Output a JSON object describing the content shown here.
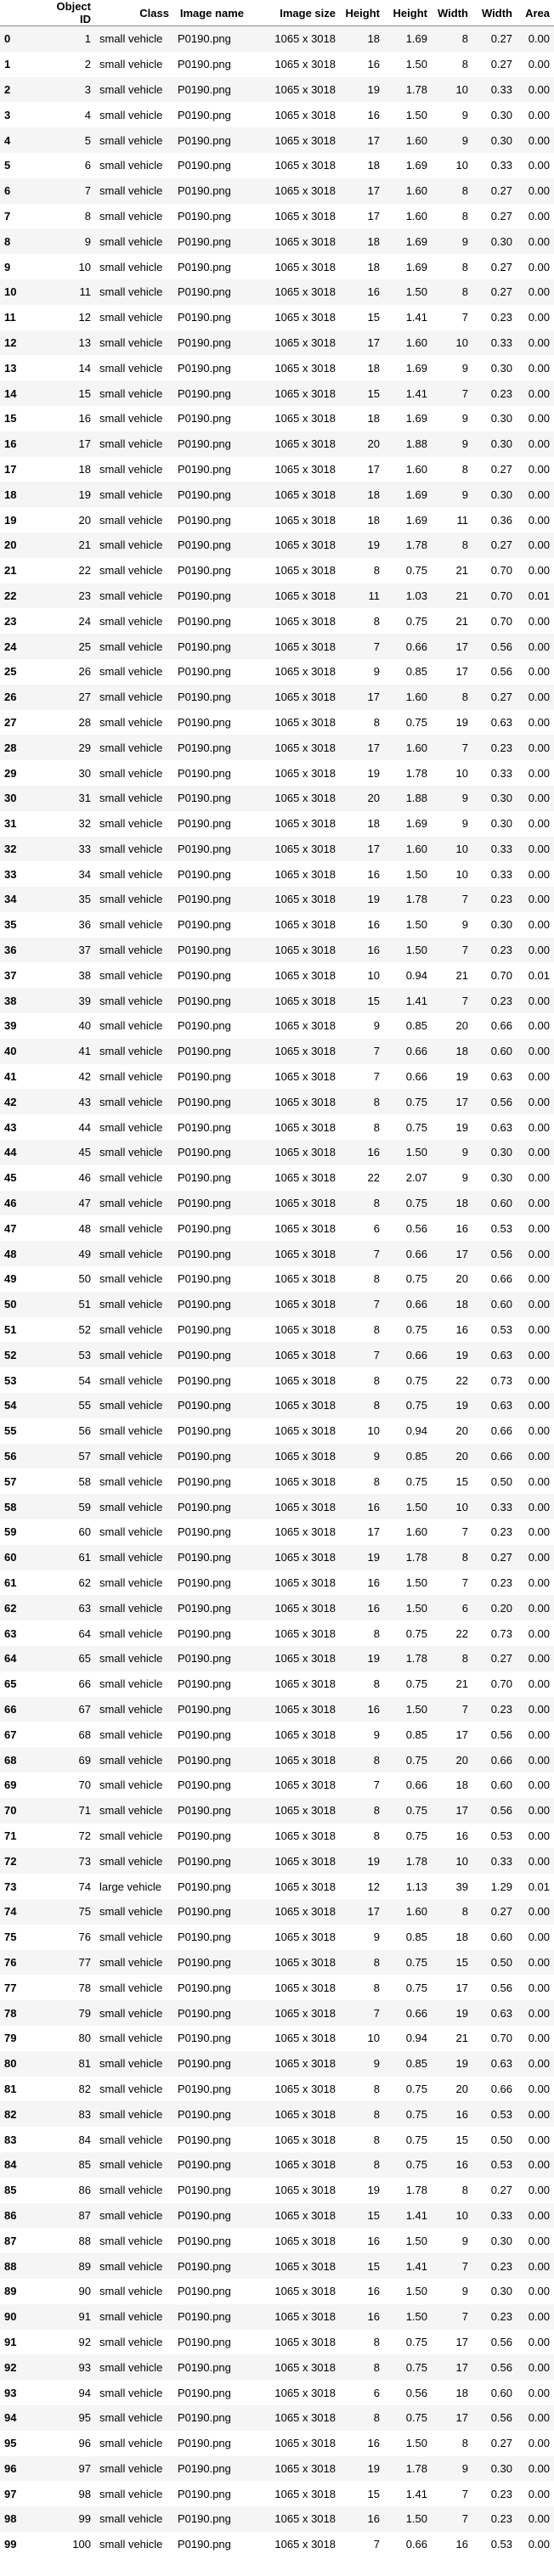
{
  "columns": [
    "",
    "Object ID",
    "Class",
    "Image name",
    "Image size",
    "Height",
    "Height",
    "Width",
    "Width",
    "Area"
  ],
  "rows": [
    [
      0,
      1,
      "small vehicle",
      "P0190.png",
      "1065 x 3018",
      18,
      "1.69",
      8,
      "0.27",
      "0.00"
    ],
    [
      1,
      2,
      "small vehicle",
      "P0190.png",
      "1065 x 3018",
      16,
      "1.50",
      8,
      "0.27",
      "0.00"
    ],
    [
      2,
      3,
      "small vehicle",
      "P0190.png",
      "1065 x 3018",
      19,
      "1.78",
      10,
      "0.33",
      "0.00"
    ],
    [
      3,
      4,
      "small vehicle",
      "P0190.png",
      "1065 x 3018",
      16,
      "1.50",
      9,
      "0.30",
      "0.00"
    ],
    [
      4,
      5,
      "small vehicle",
      "P0190.png",
      "1065 x 3018",
      17,
      "1.60",
      9,
      "0.30",
      "0.00"
    ],
    [
      5,
      6,
      "small vehicle",
      "P0190.png",
      "1065 x 3018",
      18,
      "1.69",
      10,
      "0.33",
      "0.00"
    ],
    [
      6,
      7,
      "small vehicle",
      "P0190.png",
      "1065 x 3018",
      17,
      "1.60",
      8,
      "0.27",
      "0.00"
    ],
    [
      7,
      8,
      "small vehicle",
      "P0190.png",
      "1065 x 3018",
      17,
      "1.60",
      8,
      "0.27",
      "0.00"
    ],
    [
      8,
      9,
      "small vehicle",
      "P0190.png",
      "1065 x 3018",
      18,
      "1.69",
      9,
      "0.30",
      "0.00"
    ],
    [
      9,
      10,
      "small vehicle",
      "P0190.png",
      "1065 x 3018",
      18,
      "1.69",
      8,
      "0.27",
      "0.00"
    ],
    [
      10,
      11,
      "small vehicle",
      "P0190.png",
      "1065 x 3018",
      16,
      "1.50",
      8,
      "0.27",
      "0.00"
    ],
    [
      11,
      12,
      "small vehicle",
      "P0190.png",
      "1065 x 3018",
      15,
      "1.41",
      7,
      "0.23",
      "0.00"
    ],
    [
      12,
      13,
      "small vehicle",
      "P0190.png",
      "1065 x 3018",
      17,
      "1.60",
      10,
      "0.33",
      "0.00"
    ],
    [
      13,
      14,
      "small vehicle",
      "P0190.png",
      "1065 x 3018",
      18,
      "1.69",
      9,
      "0.30",
      "0.00"
    ],
    [
      14,
      15,
      "small vehicle",
      "P0190.png",
      "1065 x 3018",
      15,
      "1.41",
      7,
      "0.23",
      "0.00"
    ],
    [
      15,
      16,
      "small vehicle",
      "P0190.png",
      "1065 x 3018",
      18,
      "1.69",
      9,
      "0.30",
      "0.00"
    ],
    [
      16,
      17,
      "small vehicle",
      "P0190.png",
      "1065 x 3018",
      20,
      "1.88",
      9,
      "0.30",
      "0.00"
    ],
    [
      17,
      18,
      "small vehicle",
      "P0190.png",
      "1065 x 3018",
      17,
      "1.60",
      8,
      "0.27",
      "0.00"
    ],
    [
      18,
      19,
      "small vehicle",
      "P0190.png",
      "1065 x 3018",
      18,
      "1.69",
      9,
      "0.30",
      "0.00"
    ],
    [
      19,
      20,
      "small vehicle",
      "P0190.png",
      "1065 x 3018",
      18,
      "1.69",
      11,
      "0.36",
      "0.00"
    ],
    [
      20,
      21,
      "small vehicle",
      "P0190.png",
      "1065 x 3018",
      19,
      "1.78",
      8,
      "0.27",
      "0.00"
    ],
    [
      21,
      22,
      "small vehicle",
      "P0190.png",
      "1065 x 3018",
      8,
      "0.75",
      21,
      "0.70",
      "0.00"
    ],
    [
      22,
      23,
      "small vehicle",
      "P0190.png",
      "1065 x 3018",
      11,
      "1.03",
      21,
      "0.70",
      "0.01"
    ],
    [
      23,
      24,
      "small vehicle",
      "P0190.png",
      "1065 x 3018",
      8,
      "0.75",
      21,
      "0.70",
      "0.00"
    ],
    [
      24,
      25,
      "small vehicle",
      "P0190.png",
      "1065 x 3018",
      7,
      "0.66",
      17,
      "0.56",
      "0.00"
    ],
    [
      25,
      26,
      "small vehicle",
      "P0190.png",
      "1065 x 3018",
      9,
      "0.85",
      17,
      "0.56",
      "0.00"
    ],
    [
      26,
      27,
      "small vehicle",
      "P0190.png",
      "1065 x 3018",
      17,
      "1.60",
      8,
      "0.27",
      "0.00"
    ],
    [
      27,
      28,
      "small vehicle",
      "P0190.png",
      "1065 x 3018",
      8,
      "0.75",
      19,
      "0.63",
      "0.00"
    ],
    [
      28,
      29,
      "small vehicle",
      "P0190.png",
      "1065 x 3018",
      17,
      "1.60",
      7,
      "0.23",
      "0.00"
    ],
    [
      29,
      30,
      "small vehicle",
      "P0190.png",
      "1065 x 3018",
      19,
      "1.78",
      10,
      "0.33",
      "0.00"
    ],
    [
      30,
      31,
      "small vehicle",
      "P0190.png",
      "1065 x 3018",
      20,
      "1.88",
      9,
      "0.30",
      "0.00"
    ],
    [
      31,
      32,
      "small vehicle",
      "P0190.png",
      "1065 x 3018",
      18,
      "1.69",
      9,
      "0.30",
      "0.00"
    ],
    [
      32,
      33,
      "small vehicle",
      "P0190.png",
      "1065 x 3018",
      17,
      "1.60",
      10,
      "0.33",
      "0.00"
    ],
    [
      33,
      34,
      "small vehicle",
      "P0190.png",
      "1065 x 3018",
      16,
      "1.50",
      10,
      "0.33",
      "0.00"
    ],
    [
      34,
      35,
      "small vehicle",
      "P0190.png",
      "1065 x 3018",
      19,
      "1.78",
      7,
      "0.23",
      "0.00"
    ],
    [
      35,
      36,
      "small vehicle",
      "P0190.png",
      "1065 x 3018",
      16,
      "1.50",
      9,
      "0.30",
      "0.00"
    ],
    [
      36,
      37,
      "small vehicle",
      "P0190.png",
      "1065 x 3018",
      16,
      "1.50",
      7,
      "0.23",
      "0.00"
    ],
    [
      37,
      38,
      "small vehicle",
      "P0190.png",
      "1065 x 3018",
      10,
      "0.94",
      21,
      "0.70",
      "0.01"
    ],
    [
      38,
      39,
      "small vehicle",
      "P0190.png",
      "1065 x 3018",
      15,
      "1.41",
      7,
      "0.23",
      "0.00"
    ],
    [
      39,
      40,
      "small vehicle",
      "P0190.png",
      "1065 x 3018",
      9,
      "0.85",
      20,
      "0.66",
      "0.00"
    ],
    [
      40,
      41,
      "small vehicle",
      "P0190.png",
      "1065 x 3018",
      7,
      "0.66",
      18,
      "0.60",
      "0.00"
    ],
    [
      41,
      42,
      "small vehicle",
      "P0190.png",
      "1065 x 3018",
      7,
      "0.66",
      19,
      "0.63",
      "0.00"
    ],
    [
      42,
      43,
      "small vehicle",
      "P0190.png",
      "1065 x 3018",
      8,
      "0.75",
      17,
      "0.56",
      "0.00"
    ],
    [
      43,
      44,
      "small vehicle",
      "P0190.png",
      "1065 x 3018",
      8,
      "0.75",
      19,
      "0.63",
      "0.00"
    ],
    [
      44,
      45,
      "small vehicle",
      "P0190.png",
      "1065 x 3018",
      16,
      "1.50",
      9,
      "0.30",
      "0.00"
    ],
    [
      45,
      46,
      "small vehicle",
      "P0190.png",
      "1065 x 3018",
      22,
      "2.07",
      9,
      "0.30",
      "0.00"
    ],
    [
      46,
      47,
      "small vehicle",
      "P0190.png",
      "1065 x 3018",
      8,
      "0.75",
      18,
      "0.60",
      "0.00"
    ],
    [
      47,
      48,
      "small vehicle",
      "P0190.png",
      "1065 x 3018",
      6,
      "0.56",
      16,
      "0.53",
      "0.00"
    ],
    [
      48,
      49,
      "small vehicle",
      "P0190.png",
      "1065 x 3018",
      7,
      "0.66",
      17,
      "0.56",
      "0.00"
    ],
    [
      49,
      50,
      "small vehicle",
      "P0190.png",
      "1065 x 3018",
      8,
      "0.75",
      20,
      "0.66",
      "0.00"
    ],
    [
      50,
      51,
      "small vehicle",
      "P0190.png",
      "1065 x 3018",
      7,
      "0.66",
      18,
      "0.60",
      "0.00"
    ],
    [
      51,
      52,
      "small vehicle",
      "P0190.png",
      "1065 x 3018",
      8,
      "0.75",
      16,
      "0.53",
      "0.00"
    ],
    [
      52,
      53,
      "small vehicle",
      "P0190.png",
      "1065 x 3018",
      7,
      "0.66",
      19,
      "0.63",
      "0.00"
    ],
    [
      53,
      54,
      "small vehicle",
      "P0190.png",
      "1065 x 3018",
      8,
      "0.75",
      22,
      "0.73",
      "0.00"
    ],
    [
      54,
      55,
      "small vehicle",
      "P0190.png",
      "1065 x 3018",
      8,
      "0.75",
      19,
      "0.63",
      "0.00"
    ],
    [
      55,
      56,
      "small vehicle",
      "P0190.png",
      "1065 x 3018",
      10,
      "0.94",
      20,
      "0.66",
      "0.00"
    ],
    [
      56,
      57,
      "small vehicle",
      "P0190.png",
      "1065 x 3018",
      9,
      "0.85",
      20,
      "0.66",
      "0.00"
    ],
    [
      57,
      58,
      "small vehicle",
      "P0190.png",
      "1065 x 3018",
      8,
      "0.75",
      15,
      "0.50",
      "0.00"
    ],
    [
      58,
      59,
      "small vehicle",
      "P0190.png",
      "1065 x 3018",
      16,
      "1.50",
      10,
      "0.33",
      "0.00"
    ],
    [
      59,
      60,
      "small vehicle",
      "P0190.png",
      "1065 x 3018",
      17,
      "1.60",
      7,
      "0.23",
      "0.00"
    ],
    [
      60,
      61,
      "small vehicle",
      "P0190.png",
      "1065 x 3018",
      19,
      "1.78",
      8,
      "0.27",
      "0.00"
    ],
    [
      61,
      62,
      "small vehicle",
      "P0190.png",
      "1065 x 3018",
      16,
      "1.50",
      7,
      "0.23",
      "0.00"
    ],
    [
      62,
      63,
      "small vehicle",
      "P0190.png",
      "1065 x 3018",
      16,
      "1.50",
      6,
      "0.20",
      "0.00"
    ],
    [
      63,
      64,
      "small vehicle",
      "P0190.png",
      "1065 x 3018",
      8,
      "0.75",
      22,
      "0.73",
      "0.00"
    ],
    [
      64,
      65,
      "small vehicle",
      "P0190.png",
      "1065 x 3018",
      19,
      "1.78",
      8,
      "0.27",
      "0.00"
    ],
    [
      65,
      66,
      "small vehicle",
      "P0190.png",
      "1065 x 3018",
      8,
      "0.75",
      21,
      "0.70",
      "0.00"
    ],
    [
      66,
      67,
      "small vehicle",
      "P0190.png",
      "1065 x 3018",
      16,
      "1.50",
      7,
      "0.23",
      "0.00"
    ],
    [
      67,
      68,
      "small vehicle",
      "P0190.png",
      "1065 x 3018",
      9,
      "0.85",
      17,
      "0.56",
      "0.00"
    ],
    [
      68,
      69,
      "small vehicle",
      "P0190.png",
      "1065 x 3018",
      8,
      "0.75",
      20,
      "0.66",
      "0.00"
    ],
    [
      69,
      70,
      "small vehicle",
      "P0190.png",
      "1065 x 3018",
      7,
      "0.66",
      18,
      "0.60",
      "0.00"
    ],
    [
      70,
      71,
      "small vehicle",
      "P0190.png",
      "1065 x 3018",
      8,
      "0.75",
      17,
      "0.56",
      "0.00"
    ],
    [
      71,
      72,
      "small vehicle",
      "P0190.png",
      "1065 x 3018",
      8,
      "0.75",
      16,
      "0.53",
      "0.00"
    ],
    [
      72,
      73,
      "small vehicle",
      "P0190.png",
      "1065 x 3018",
      19,
      "1.78",
      10,
      "0.33",
      "0.00"
    ],
    [
      73,
      74,
      "large vehicle",
      "P0190.png",
      "1065 x 3018",
      12,
      "1.13",
      39,
      "1.29",
      "0.01"
    ],
    [
      74,
      75,
      "small vehicle",
      "P0190.png",
      "1065 x 3018",
      17,
      "1.60",
      8,
      "0.27",
      "0.00"
    ],
    [
      75,
      76,
      "small vehicle",
      "P0190.png",
      "1065 x 3018",
      9,
      "0.85",
      18,
      "0.60",
      "0.00"
    ],
    [
      76,
      77,
      "small vehicle",
      "P0190.png",
      "1065 x 3018",
      8,
      "0.75",
      15,
      "0.50",
      "0.00"
    ],
    [
      77,
      78,
      "small vehicle",
      "P0190.png",
      "1065 x 3018",
      8,
      "0.75",
      17,
      "0.56",
      "0.00"
    ],
    [
      78,
      79,
      "small vehicle",
      "P0190.png",
      "1065 x 3018",
      7,
      "0.66",
      19,
      "0.63",
      "0.00"
    ],
    [
      79,
      80,
      "small vehicle",
      "P0190.png",
      "1065 x 3018",
      10,
      "0.94",
      21,
      "0.70",
      "0.00"
    ],
    [
      80,
      81,
      "small vehicle",
      "P0190.png",
      "1065 x 3018",
      9,
      "0.85",
      19,
      "0.63",
      "0.00"
    ],
    [
      81,
      82,
      "small vehicle",
      "P0190.png",
      "1065 x 3018",
      8,
      "0.75",
      20,
      "0.66",
      "0.00"
    ],
    [
      82,
      83,
      "small vehicle",
      "P0190.png",
      "1065 x 3018",
      8,
      "0.75",
      16,
      "0.53",
      "0.00"
    ],
    [
      83,
      84,
      "small vehicle",
      "P0190.png",
      "1065 x 3018",
      8,
      "0.75",
      15,
      "0.50",
      "0.00"
    ],
    [
      84,
      85,
      "small vehicle",
      "P0190.png",
      "1065 x 3018",
      8,
      "0.75",
      16,
      "0.53",
      "0.00"
    ],
    [
      85,
      86,
      "small vehicle",
      "P0190.png",
      "1065 x 3018",
      19,
      "1.78",
      8,
      "0.27",
      "0.00"
    ],
    [
      86,
      87,
      "small vehicle",
      "P0190.png",
      "1065 x 3018",
      15,
      "1.41",
      10,
      "0.33",
      "0.00"
    ],
    [
      87,
      88,
      "small vehicle",
      "P0190.png",
      "1065 x 3018",
      16,
      "1.50",
      9,
      "0.30",
      "0.00"
    ],
    [
      88,
      89,
      "small vehicle",
      "P0190.png",
      "1065 x 3018",
      15,
      "1.41",
      7,
      "0.23",
      "0.00"
    ],
    [
      89,
      90,
      "small vehicle",
      "P0190.png",
      "1065 x 3018",
      16,
      "1.50",
      9,
      "0.30",
      "0.00"
    ],
    [
      90,
      91,
      "small vehicle",
      "P0190.png",
      "1065 x 3018",
      16,
      "1.50",
      7,
      "0.23",
      "0.00"
    ],
    [
      91,
      92,
      "small vehicle",
      "P0190.png",
      "1065 x 3018",
      8,
      "0.75",
      17,
      "0.56",
      "0.00"
    ],
    [
      92,
      93,
      "small vehicle",
      "P0190.png",
      "1065 x 3018",
      8,
      "0.75",
      17,
      "0.56",
      "0.00"
    ],
    [
      93,
      94,
      "small vehicle",
      "P0190.png",
      "1065 x 3018",
      6,
      "0.56",
      18,
      "0.60",
      "0.00"
    ],
    [
      94,
      95,
      "small vehicle",
      "P0190.png",
      "1065 x 3018",
      8,
      "0.75",
      17,
      "0.56",
      "0.00"
    ],
    [
      95,
      96,
      "small vehicle",
      "P0190.png",
      "1065 x 3018",
      16,
      "1.50",
      8,
      "0.27",
      "0.00"
    ],
    [
      96,
      97,
      "small vehicle",
      "P0190.png",
      "1065 x 3018",
      19,
      "1.78",
      9,
      "0.30",
      "0.00"
    ],
    [
      97,
      98,
      "small vehicle",
      "P0190.png",
      "1065 x 3018",
      15,
      "1.41",
      7,
      "0.23",
      "0.00"
    ],
    [
      98,
      99,
      "small vehicle",
      "P0190.png",
      "1065 x 3018",
      16,
      "1.50",
      7,
      "0.23",
      "0.00"
    ],
    [
      99,
      100,
      "small vehicle",
      "P0190.png",
      "1065 x 3018",
      7,
      "0.66",
      16,
      "0.53",
      "0.00"
    ]
  ]
}
